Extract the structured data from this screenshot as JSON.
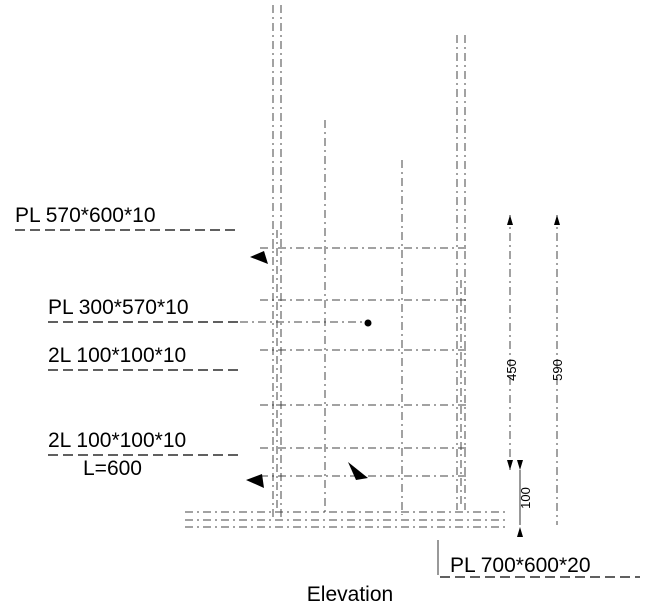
{
  "labels": {
    "plate_top": "PL 570*600*10",
    "plate_gusset": "PL 300*570*10",
    "angle_upper": "2L 100*100*10",
    "angle_lower": "2L 100*100*10",
    "angle_lower_length": "L=600",
    "base_plate": "PL 700*600*20",
    "view_title": "Elevation"
  },
  "dimensions": {
    "height_inner": "450",
    "height_outer": "590",
    "base_gap": "100"
  }
}
